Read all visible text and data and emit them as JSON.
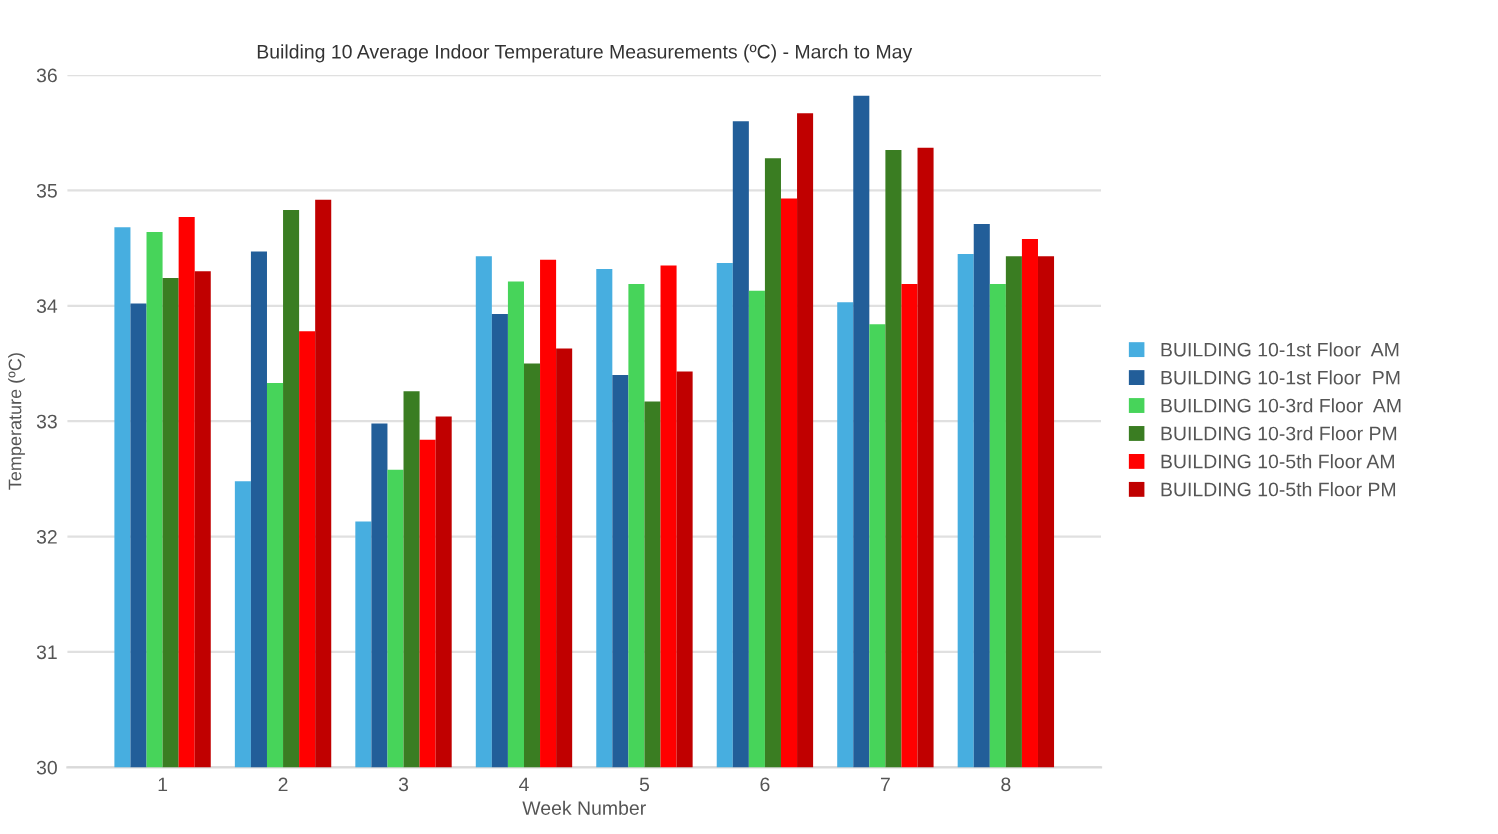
{
  "chart_data": {
    "type": "bar",
    "title": "Building 10 Average Indoor Temperature Measurements (ºC) - March to May",
    "xlabel": "Week Number",
    "ylabel": "Temperature (ºC)",
    "categories": [
      "1",
      "2",
      "3",
      "4",
      "5",
      "6",
      "7",
      "8"
    ],
    "series": [
      {
        "name": "BUILDING 10-1st Floor  AM",
        "color": "#47aee0",
        "values": [
          34.68,
          32.48,
          32.13,
          34.43,
          34.32,
          34.37,
          34.03,
          34.45
        ]
      },
      {
        "name": "BUILDING 10-1st Floor  PM",
        "color": "#225e99",
        "values": [
          34.02,
          34.47,
          32.98,
          33.93,
          33.4,
          35.6,
          35.82,
          34.71
        ]
      },
      {
        "name": "BUILDING 10-3rd Floor  AM",
        "color": "#47d45a",
        "values": [
          34.64,
          33.33,
          32.58,
          34.21,
          34.19,
          34.13,
          33.84,
          34.19
        ]
      },
      {
        "name": "BUILDING 10-3rd Floor PM",
        "color": "#3a7d22",
        "values": [
          34.24,
          34.83,
          33.26,
          33.5,
          33.17,
          35.28,
          35.35,
          34.43
        ]
      },
      {
        "name": "BUILDING 10-5th Floor AM",
        "color": "#ff0000",
        "values": [
          34.77,
          33.78,
          32.84,
          34.4,
          34.35,
          34.93,
          34.19,
          34.58
        ]
      },
      {
        "name": "BUILDING 10-5th Floor PM",
        "color": "#c00000",
        "values": [
          34.3,
          34.92,
          33.04,
          33.63,
          33.43,
          35.67,
          35.37,
          34.43
        ]
      }
    ],
    "ylim": [
      30,
      36
    ],
    "yticks": [
      30,
      31,
      32,
      33,
      34,
      35,
      36
    ],
    "grid": "y",
    "legend": "right"
  }
}
